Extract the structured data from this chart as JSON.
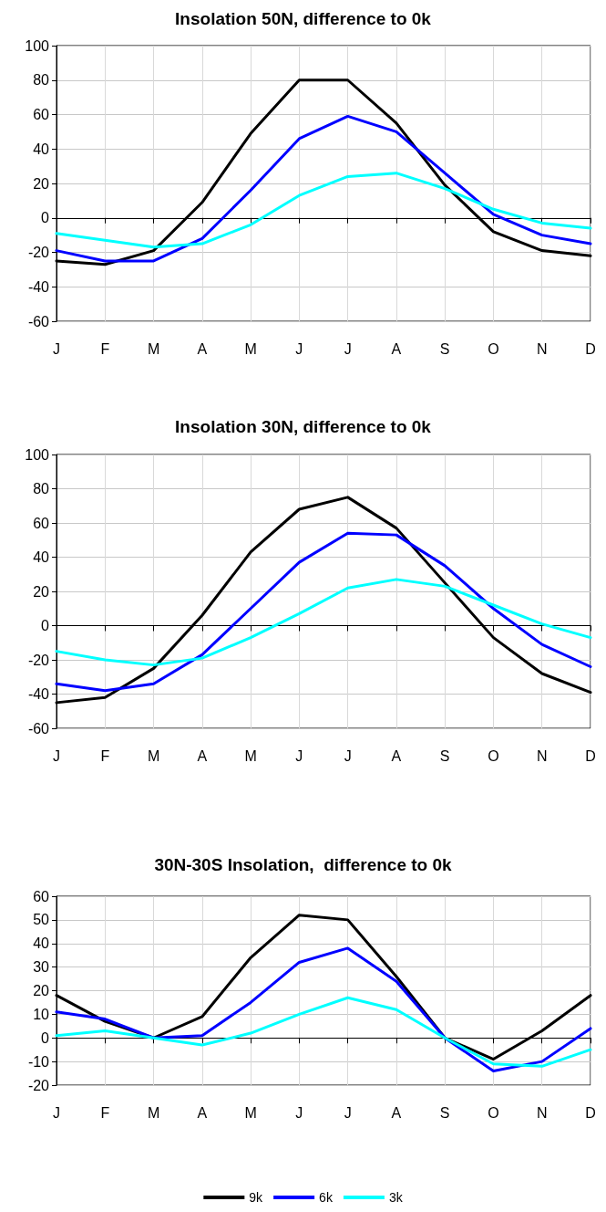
{
  "chart_data": [
    {
      "type": "line",
      "title": "Insolation 50N, difference to 0k",
      "categories": [
        "J",
        "F",
        "M",
        "A",
        "M",
        "J",
        "J",
        "A",
        "S",
        "O",
        "N",
        "D"
      ],
      "ylim": [
        -60,
        100
      ],
      "yticks": [
        -60,
        -40,
        -20,
        0,
        20,
        40,
        60,
        80,
        100
      ],
      "grid": true,
      "legend": false,
      "marker": "none",
      "line_style": "solid",
      "series": [
        {
          "color": "#000000",
          "values": [
            -25,
            -27,
            -19,
            9,
            49,
            80,
            80,
            55,
            19,
            -8,
            -19,
            -22
          ]
        },
        {
          "color": "#0000ff",
          "values": [
            -19,
            -25,
            -25,
            -12,
            16,
            46,
            59,
            50,
            26,
            2,
            -10,
            -15
          ]
        },
        {
          "color": "#00ffff",
          "values": [
            -9,
            -13,
            -17,
            -15,
            -4,
            13,
            24,
            26,
            17,
            5,
            -3,
            -6
          ]
        }
      ]
    },
    {
      "type": "line",
      "title": "Insolation 30N, difference to 0k",
      "categories": [
        "J",
        "F",
        "M",
        "A",
        "M",
        "J",
        "J",
        "A",
        "S",
        "O",
        "N",
        "D"
      ],
      "ylim": [
        -60,
        100
      ],
      "yticks": [
        -60,
        -40,
        -20,
        0,
        20,
        40,
        60,
        80,
        100
      ],
      "grid": true,
      "legend": false,
      "marker": "none",
      "line_style": "solid",
      "series": [
        {
          "color": "#000000",
          "values": [
            -45,
            -42,
            -25,
            6,
            43,
            68,
            75,
            57,
            25,
            -7,
            -28,
            -39
          ]
        },
        {
          "color": "#0000ff",
          "values": [
            -34,
            -38,
            -34,
            -17,
            10,
            37,
            54,
            53,
            35,
            10,
            -11,
            -24
          ]
        },
        {
          "color": "#00ffff",
          "values": [
            -15,
            -20,
            -23,
            -19,
            -7,
            7,
            22,
            27,
            23,
            12,
            1,
            -7
          ]
        }
      ]
    },
    {
      "type": "line",
      "title": "30N-30S Insolation,  difference to 0k",
      "categories": [
        "J",
        "F",
        "M",
        "A",
        "M",
        "J",
        "J",
        "A",
        "S",
        "O",
        "N",
        "D"
      ],
      "ylim": [
        -20,
        60
      ],
      "yticks": [
        -20,
        -10,
        0,
        10,
        20,
        30,
        40,
        50,
        60
      ],
      "grid": true,
      "legend": "bottom",
      "marker": "none",
      "line_style": "solid",
      "series": [
        {
          "name": "9k",
          "color": "#000000",
          "values": [
            18,
            7,
            0,
            9,
            34,
            52,
            50,
            26,
            0,
            -9,
            3,
            18
          ]
        },
        {
          "name": "6k",
          "color": "#0000ff",
          "values": [
            11,
            8,
            0,
            1,
            15,
            32,
            38,
            24,
            0,
            -14,
            -10,
            4
          ]
        },
        {
          "name": "3k",
          "color": "#00ffff",
          "values": [
            1,
            3,
            0,
            -3,
            2,
            10,
            17,
            12,
            0,
            -11,
            -12,
            -5
          ]
        }
      ]
    }
  ]
}
